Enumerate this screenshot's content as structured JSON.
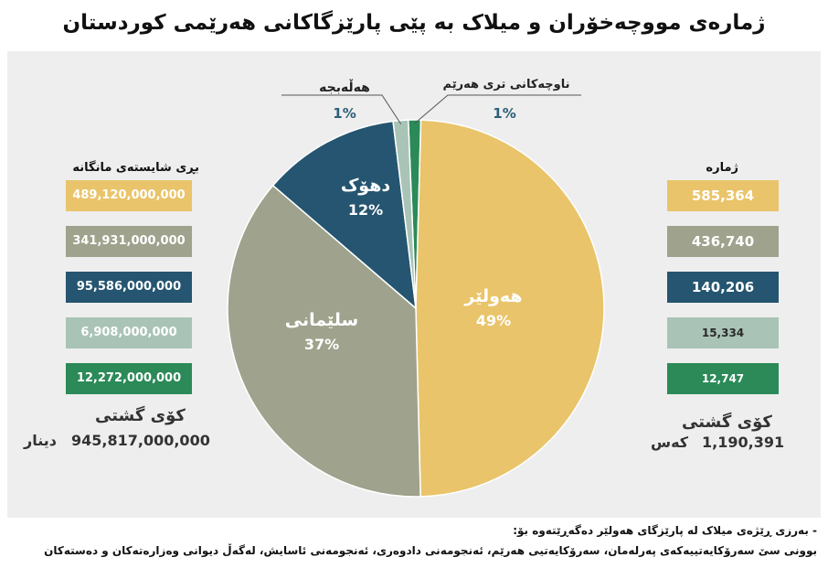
{
  "title": "ژمارەی مووچەخۆران و میلاک بە پێی پارێزگاکانی هەرێمی کوردستان",
  "left_column": {
    "heading": "بڕی شایستەی مانگانە",
    "total_label": "کۆی گشتی",
    "total_value": "945,817,000,000",
    "total_unit": "دینار"
  },
  "right_column": {
    "heading": "ژمارە",
    "total_label": "کۆی گشتی",
    "total_value": "1,190,391",
    "total_unit": "کەس"
  },
  "note": {
    "line1": "- بەرزی ڕێژەی میلاک لە پارێزگای هەولێر دەگەڕێتەوە بۆ:",
    "line2": "بوونی سێ سەرۆکایەتییەکەی پەرلەمان، سەرۆکایەتیی هەرێم، ئەنجومەنی دادوەری، ئەنجومەنی ئاسایش، لەگەڵ دیوانی وەزارەتەکان و دەستەکان"
  },
  "colors": {
    "erbil": "#e9c46a",
    "sulaymaniyah": "#9fa28c",
    "duhok": "#255570",
    "halabja": "#a9c4b6",
    "other": "#2b8a57",
    "panel": "#eeeeee"
  },
  "chart_data": {
    "type": "pie",
    "title": "ژمارەی مووچەخۆران و میلاک بە پێی پارێزگاکانی هەرێمی کوردستان",
    "slices": [
      {
        "label": "هەولێر",
        "percent": 49,
        "percent_label": "49%",
        "count": "585,364",
        "count_value": 585364,
        "amount": "489,120,000,000",
        "amount_value": 489120000000,
        "color": "#e9c46a"
      },
      {
        "label": "سلێمانی",
        "percent": 37,
        "percent_label": "37%",
        "count": "436,740",
        "count_value": 436740,
        "amount": "341,931,000,000",
        "amount_value": 341931000000,
        "color": "#9fa28c"
      },
      {
        "label": "دهۆک",
        "percent": 12,
        "percent_label": "12%",
        "count": "140,206",
        "count_value": 140206,
        "amount": "95,586,000,000",
        "amount_value": 95586000000,
        "color": "#255570"
      },
      {
        "label": "هەڵەبجە",
        "percent": 1,
        "percent_label": "1%",
        "count": "15,334",
        "count_value": 15334,
        "amount": "6,908,000,000",
        "amount_value": 6908000000,
        "color": "#a9c4b6"
      },
      {
        "label": "ناوچەکانی تری هەرێم",
        "percent": 1,
        "percent_label": "1%",
        "count": "12,747",
        "count_value": 12747,
        "amount": "12,272,000,000",
        "amount_value": 12272000000,
        "color": "#2b8a57"
      }
    ]
  }
}
